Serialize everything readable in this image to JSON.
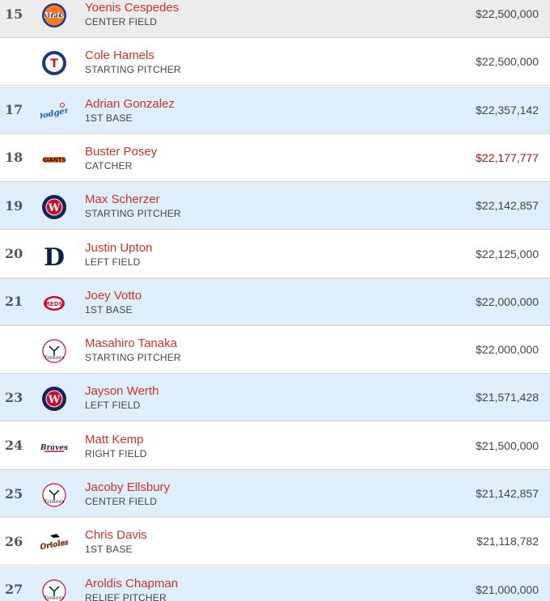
{
  "colors": {
    "row_white": "#ffffff",
    "row_blue": "#deeefb",
    "row_highlight": "#ececec",
    "name_red": "#c8342b",
    "salary_dark_red": "#8b1a1a"
  },
  "rows": [
    {
      "rank": "15",
      "name": "Yoenis Cespedes",
      "position": "CENTER FIELD",
      "salary": "$22,500,000",
      "team_icon": "mets-logo-icon",
      "bg": "#ececec",
      "salary_color": "#444444"
    },
    {
      "rank": "",
      "name": "Cole Hamels",
      "position": "STARTING PITCHER",
      "salary": "$22,500,000",
      "team_icon": "rangers-logo-icon",
      "bg": "#ffffff",
      "salary_color": "#444444"
    },
    {
      "rank": "17",
      "name": "Adrian Gonzalez",
      "position": "1ST BASE",
      "salary": "$22,357,142",
      "team_icon": "dodgers-logo-icon",
      "bg": "#deeefb",
      "salary_color": "#444444"
    },
    {
      "rank": "18",
      "name": "Buster Posey",
      "position": "CATCHER",
      "salary": "$22,177,777",
      "team_icon": "giants-logo-icon",
      "bg": "#ffffff",
      "salary_color": "#8b1a1a"
    },
    {
      "rank": "19",
      "name": "Max Scherzer",
      "position": "STARTING PITCHER",
      "salary": "$22,142,857",
      "team_icon": "nationals-logo-icon",
      "bg": "#deeefb",
      "salary_color": "#444444"
    },
    {
      "rank": "20",
      "name": "Justin Upton",
      "position": "LEFT FIELD",
      "salary": "$22,125,000",
      "team_icon": "tigers-logo-icon",
      "bg": "#ffffff",
      "salary_color": "#444444"
    },
    {
      "rank": "21",
      "name": "Joey Votto",
      "position": "1ST BASE",
      "salary": "$22,000,000",
      "team_icon": "reds-logo-icon",
      "bg": "#deeefb",
      "salary_color": "#444444"
    },
    {
      "rank": "",
      "name": "Masahiro Tanaka",
      "position": "STARTING PITCHER",
      "salary": "$22,000,000",
      "team_icon": "yankees-logo-icon",
      "bg": "#ffffff",
      "salary_color": "#444444"
    },
    {
      "rank": "23",
      "name": "Jayson Werth",
      "position": "LEFT FIELD",
      "salary": "$21,571,428",
      "team_icon": "nationals-logo-icon",
      "bg": "#deeefb",
      "salary_color": "#444444"
    },
    {
      "rank": "24",
      "name": "Matt Kemp",
      "position": "RIGHT FIELD",
      "salary": "$21,500,000",
      "team_icon": "braves-logo-icon",
      "bg": "#ffffff",
      "salary_color": "#444444"
    },
    {
      "rank": "25",
      "name": "Jacoby Ellsbury",
      "position": "CENTER FIELD",
      "salary": "$21,142,857",
      "team_icon": "yankees-logo-icon",
      "bg": "#deeefb",
      "salary_color": "#444444"
    },
    {
      "rank": "26",
      "name": "Chris Davis",
      "position": "1ST BASE",
      "salary": "$21,118,782",
      "team_icon": "orioles-logo-icon",
      "bg": "#ffffff",
      "salary_color": "#444444"
    },
    {
      "rank": "27",
      "name": "Aroldis Chapman",
      "position": "RELIEF PITCHER",
      "salary": "$21,000,000",
      "team_icon": "yankees-logo-icon",
      "bg": "#deeefb",
      "salary_color": "#444444"
    }
  ]
}
